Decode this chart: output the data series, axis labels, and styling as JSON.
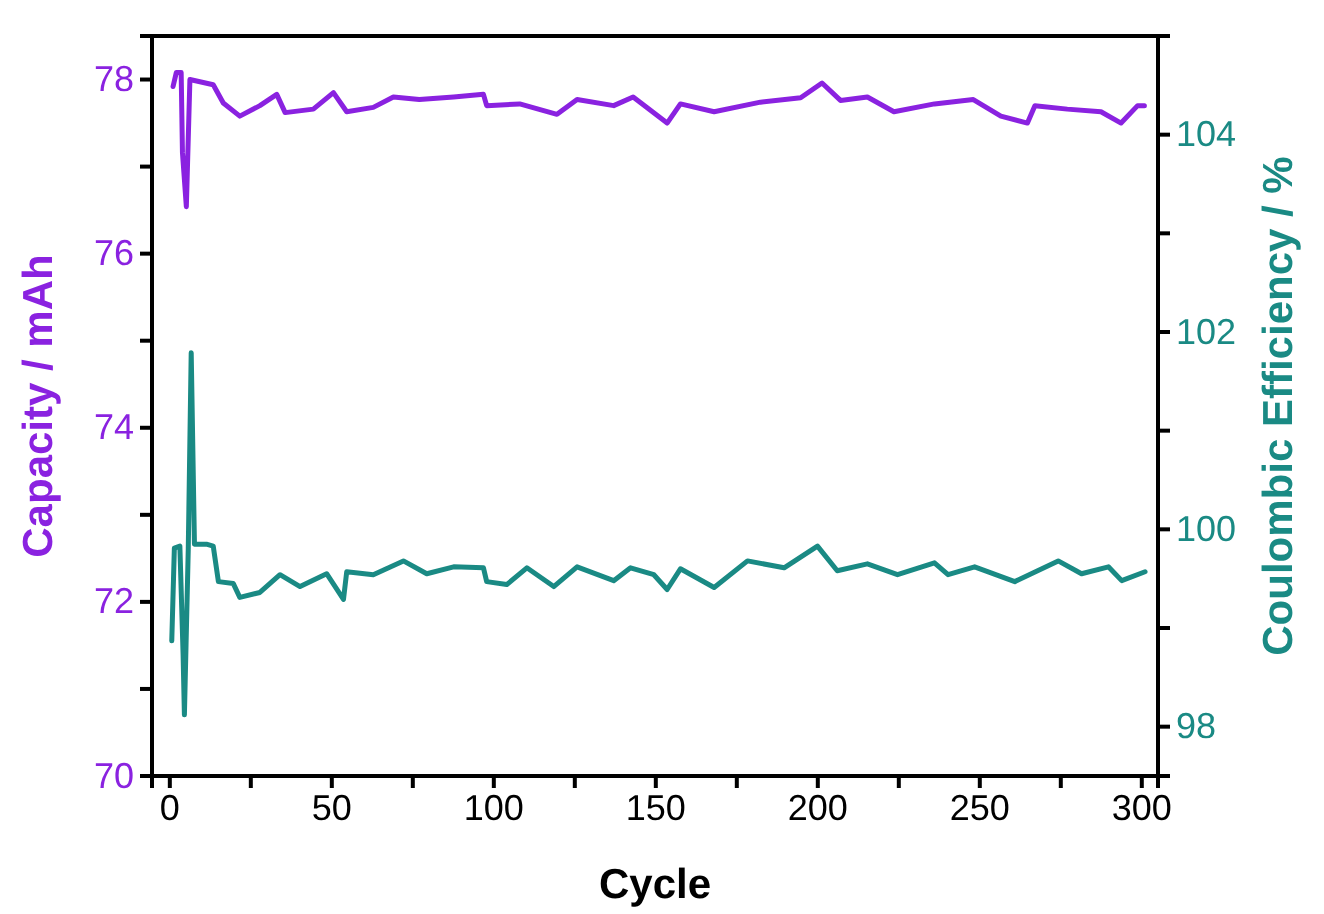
{
  "chart_data": {
    "type": "line",
    "xlabel": "Cycle",
    "ylabel": "Capacity / mAh",
    "y2label": "Coulombic Efficiency / %",
    "xlim": [
      -5.5,
      305
    ],
    "xticks": [
      0,
      {
        "value": 25,
        "label": null
      },
      50,
      {
        "value": 75,
        "label": null
      },
      100,
      {
        "value": 125,
        "label": null
      },
      150,
      {
        "value": 175,
        "label": null
      },
      200,
      {
        "value": 225,
        "label": null
      },
      250,
      {
        "value": 275,
        "label": null
      },
      300
    ],
    "ylim": [
      70,
      78.5
    ],
    "yticks": [
      70,
      {
        "value": 71,
        "label": null
      },
      72,
      {
        "value": 73,
        "label": null
      },
      74,
      {
        "value": 75,
        "label": null
      },
      76,
      {
        "value": 77,
        "label": null
      },
      78
    ],
    "y2lim": [
      97.5,
      105
    ],
    "y2ticks": [
      98,
      {
        "value": 99,
        "label": null
      },
      100,
      {
        "value": 101,
        "label": null
      },
      102,
      {
        "value": 103,
        "label": null
      },
      104
    ],
    "grid": false,
    "marker": "none",
    "line_style": "solid",
    "series": [
      {
        "color": "#8a22e0",
        "x": [
          1,
          2,
          3.5,
          3.9,
          5.1,
          6.2,
          13.4,
          16.5,
          21.6,
          27.8,
          33,
          35.6,
          44.3,
          50.5,
          54.6,
          62.8,
          69,
          77,
          87.6,
          96.8,
          97.8,
          108,
          119.5,
          125.7,
          137,
          143,
          153.5,
          157.6,
          168,
          182.3,
          194.7,
          201.3,
          207,
          215.3,
          223.5,
          236,
          248,
          256.5,
          264.7,
          267,
          277,
          287.4,
          293.6,
          298.7,
          300.8
        ],
        "values": [
          77.92,
          78.08,
          78.08,
          77.16,
          76.54,
          78,
          77.94,
          77.73,
          77.58,
          77.7,
          77.83,
          77.62,
          77.66,
          77.85,
          77.63,
          77.68,
          77.8,
          77.77,
          77.8,
          77.83,
          77.7,
          77.72,
          77.6,
          77.77,
          77.7,
          77.8,
          77.5,
          77.72,
          77.63,
          77.74,
          77.79,
          77.96,
          77.76,
          77.8,
          77.63,
          77.72,
          77.77,
          77.58,
          77.5,
          77.7,
          77.66,
          77.63,
          77.5,
          77.7,
          77.7
        ]
      },
      {
        "color": "#1a8a84",
        "axis": "y2",
        "x": [
          0.6,
          1.4,
          3.1,
          4.1,
          4.5,
          5.7,
          6.6,
          7.6,
          11.3,
          13.4,
          15,
          19.6,
          21.6,
          27.8,
          34,
          40.2,
          48.4,
          53.6,
          54.6,
          62.8,
          72.1,
          79.3,
          87.6,
          96.8,
          97.8,
          104,
          110.2,
          118.5,
          125.7,
          137,
          142.2,
          149.4,
          153.5,
          157.6,
          168,
          178.3,
          189.6,
          199.9,
          206,
          215.3,
          224.6,
          236,
          240.2,
          248.4,
          260.8,
          274.2,
          281.4,
          289.7,
          293.8,
          301
        ],
        "values": [
          98.87,
          99.81,
          99.83,
          98.73,
          98.12,
          99.81,
          101.79,
          99.85,
          99.85,
          99.83,
          99.47,
          99.45,
          99.31,
          99.36,
          99.54,
          99.42,
          99.55,
          99.29,
          99.57,
          99.54,
          99.68,
          99.55,
          99.62,
          99.61,
          99.47,
          99.44,
          99.61,
          99.42,
          99.62,
          99.48,
          99.61,
          99.54,
          99.39,
          99.6,
          99.41,
          99.68,
          99.61,
          99.83,
          99.58,
          99.65,
          99.54,
          99.66,
          99.54,
          99.62,
          99.47,
          99.68,
          99.55,
          99.62,
          99.48,
          99.57
        ]
      }
    ]
  }
}
